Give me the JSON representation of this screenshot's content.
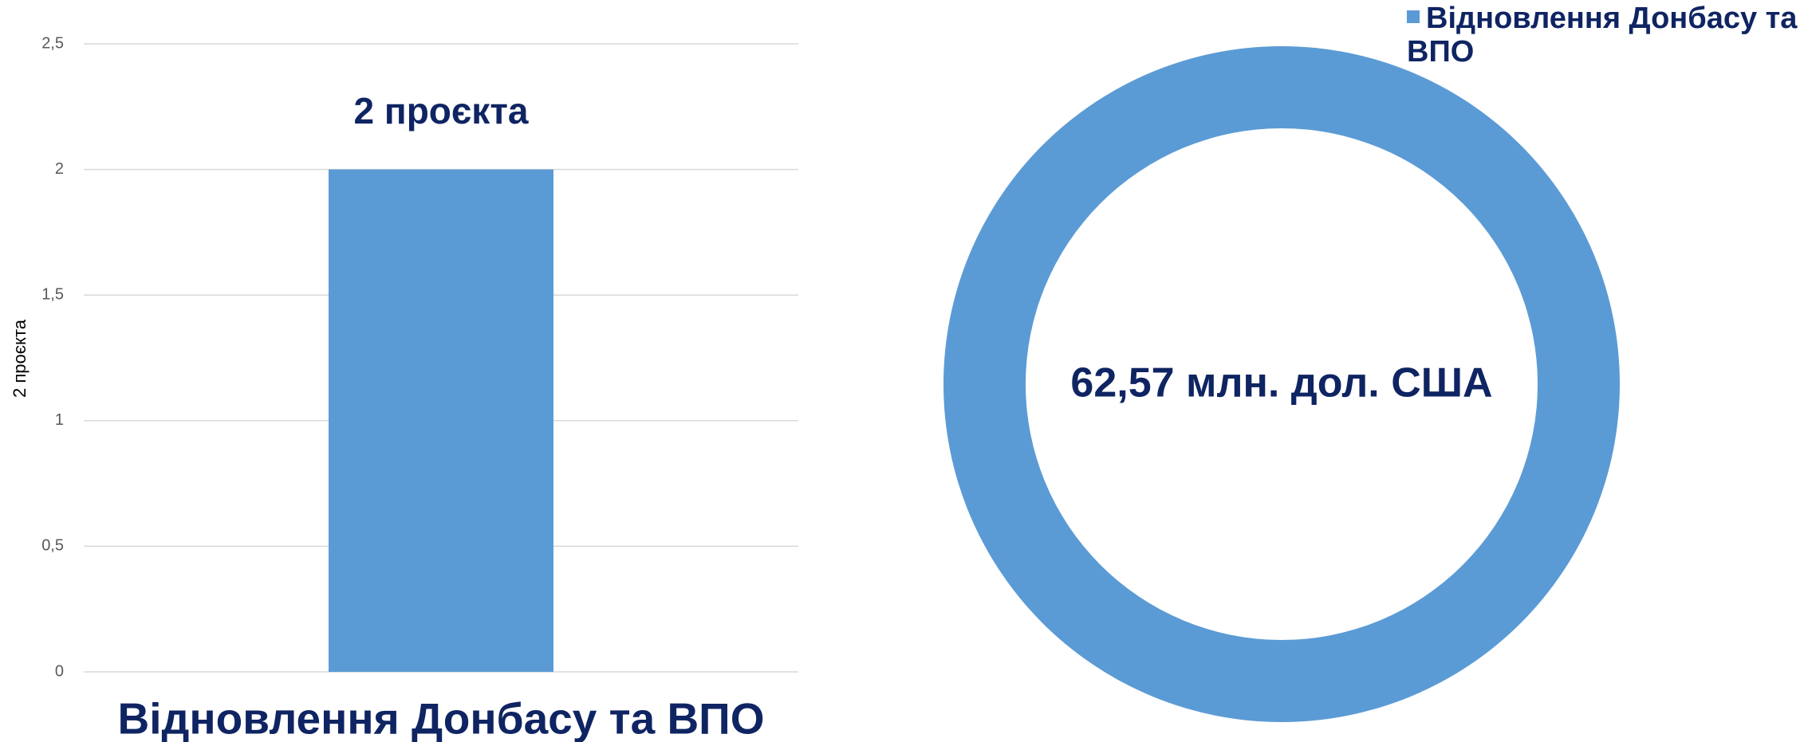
{
  "chart_data": [
    {
      "type": "bar",
      "categories": [
        "Відновлення Донбасу та ВПО"
      ],
      "values": [
        2
      ],
      "value_labels": [
        "2 проєкта"
      ],
      "y_label": "2 проєкта",
      "color": "#5b9bd5",
      "ylim": [
        0,
        2.5
      ],
      "yticks": [
        0,
        {
          "value": 0.5,
          "label": "0,5"
        },
        1,
        {
          "value": 1.5,
          "label": "1,5"
        },
        2,
        {
          "value": 2.5,
          "label": "2,5"
        }
      ],
      "grid": true
    },
    {
      "type": "donut",
      "categories": [
        "Відновлення Донбасу та ВПО"
      ],
      "values": [
        62.57
      ],
      "value_labels": [
        "62,57 млн. дол. США"
      ],
      "colors": [
        "#5b9bd5"
      ],
      "legend": "top-right"
    }
  ]
}
